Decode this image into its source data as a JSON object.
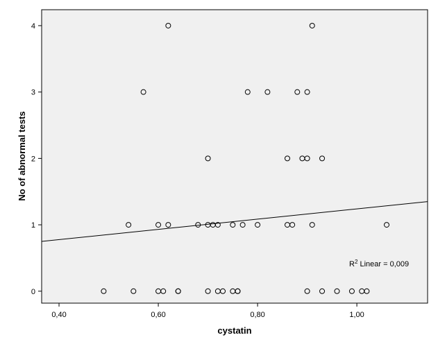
{
  "chart_data": {
    "type": "scatter",
    "title": "",
    "xlabel": "cystatin",
    "ylabel": "No of abnormal tests",
    "xlim": [
      0.365,
      1.1425
    ],
    "ylim": [
      -0.18,
      4.24
    ],
    "x_ticks": [
      0.4,
      0.6,
      0.8,
      1.0
    ],
    "x_tick_labels": [
      "0,40",
      "0,60",
      "0,80",
      "1,00"
    ],
    "y_ticks": [
      0,
      1,
      2,
      3,
      4
    ],
    "y_tick_labels": [
      "0",
      "1",
      "2",
      "3",
      "4"
    ],
    "grid": false,
    "colors": {
      "plot_bg": "#f0f0f0",
      "marker": "#000000",
      "line": "#000000"
    },
    "points": [
      {
        "x": 0.62,
        "y": 4
      },
      {
        "x": 0.91,
        "y": 4
      },
      {
        "x": 0.57,
        "y": 3
      },
      {
        "x": 0.78,
        "y": 3
      },
      {
        "x": 0.82,
        "y": 3
      },
      {
        "x": 0.88,
        "y": 3
      },
      {
        "x": 0.9,
        "y": 3
      },
      {
        "x": 0.7,
        "y": 2
      },
      {
        "x": 0.86,
        "y": 2
      },
      {
        "x": 0.89,
        "y": 2
      },
      {
        "x": 0.9,
        "y": 2
      },
      {
        "x": 0.93,
        "y": 2
      },
      {
        "x": 0.54,
        "y": 1
      },
      {
        "x": 0.6,
        "y": 1
      },
      {
        "x": 0.62,
        "y": 1
      },
      {
        "x": 0.68,
        "y": 1
      },
      {
        "x": 0.7,
        "y": 1
      },
      {
        "x": 0.71,
        "y": 1
      },
      {
        "x": 0.72,
        "y": 1
      },
      {
        "x": 0.75,
        "y": 1
      },
      {
        "x": 0.77,
        "y": 1
      },
      {
        "x": 0.8,
        "y": 1
      },
      {
        "x": 0.86,
        "y": 1
      },
      {
        "x": 0.87,
        "y": 1
      },
      {
        "x": 0.91,
        "y": 1
      },
      {
        "x": 1.06,
        "y": 1
      },
      {
        "x": 0.49,
        "y": 0
      },
      {
        "x": 0.55,
        "y": 0
      },
      {
        "x": 0.6,
        "y": 0
      },
      {
        "x": 0.61,
        "y": 0
      },
      {
        "x": 0.64,
        "y": 0
      },
      {
        "x": 0.64,
        "y": 0
      },
      {
        "x": 0.7,
        "y": 0
      },
      {
        "x": 0.72,
        "y": 0
      },
      {
        "x": 0.73,
        "y": 0
      },
      {
        "x": 0.75,
        "y": 0
      },
      {
        "x": 0.76,
        "y": 0
      },
      {
        "x": 0.76,
        "y": 0
      },
      {
        "x": 0.9,
        "y": 0
      },
      {
        "x": 0.93,
        "y": 0
      },
      {
        "x": 0.96,
        "y": 0
      },
      {
        "x": 0.99,
        "y": 0
      },
      {
        "x": 1.01,
        "y": 0
      },
      {
        "x": 1.02,
        "y": 0
      }
    ],
    "fit_line": {
      "type": "linear",
      "x": [
        0.365,
        1.1425
      ],
      "y": [
        0.75,
        1.35
      ]
    },
    "annotation": {
      "prefix": "R",
      "superscript": "2",
      "text": " Linear = 0,009"
    }
  }
}
